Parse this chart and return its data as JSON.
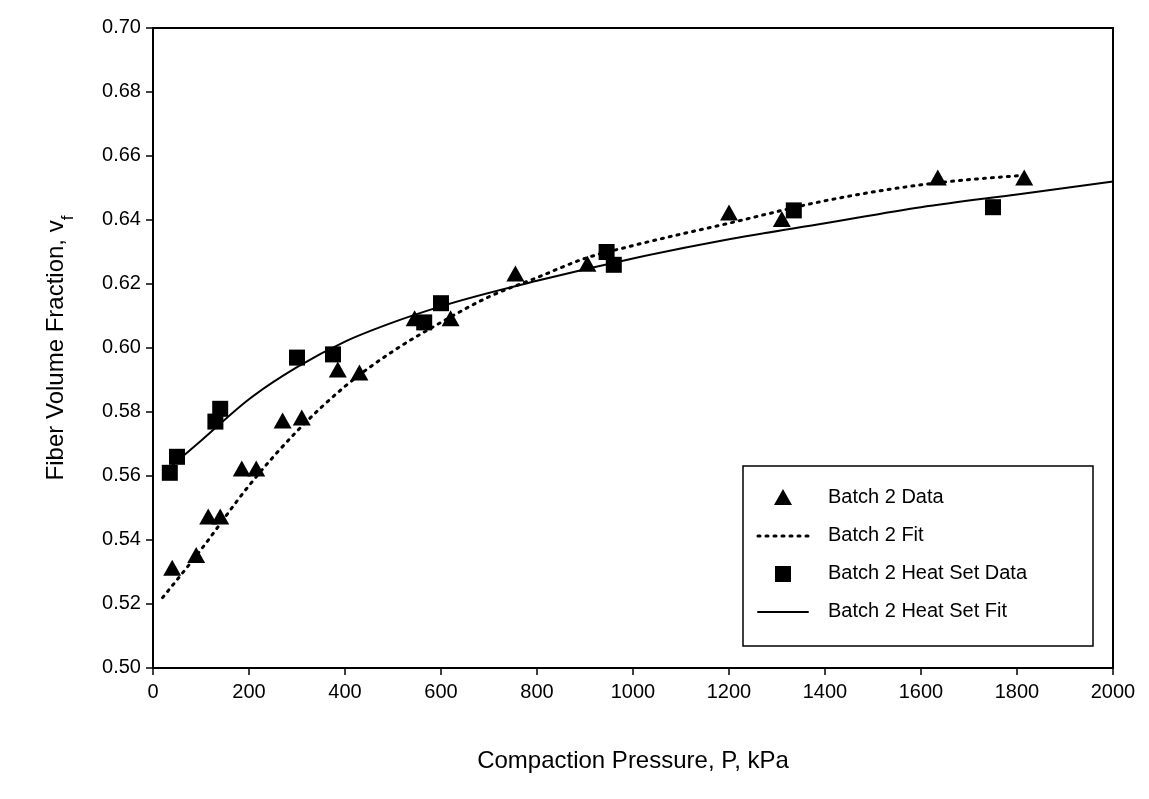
{
  "chart_data": {
    "type": "scatter",
    "xlabel": "Compaction Pressure, P, kPa",
    "ylabel": "Fiber Volume Fraction, v$_{f}$",
    "xlim": [
      0,
      2000
    ],
    "xticks": [
      0,
      200,
      400,
      600,
      800,
      1000,
      1200,
      1400,
      1600,
      1800,
      2000
    ],
    "ylim": [
      0.5,
      0.7
    ],
    "yticks": [
      {
        "value": 0.5,
        "label": "0.50"
      },
      {
        "value": 0.52,
        "label": "0.52"
      },
      {
        "value": 0.54,
        "label": "0.54"
      },
      {
        "value": 0.56,
        "label": "0.56"
      },
      {
        "value": 0.58,
        "label": "0.58"
      },
      {
        "value": 0.6,
        "label": "0.60"
      },
      {
        "value": 0.62,
        "label": "0.62"
      },
      {
        "value": 0.64,
        "label": "0.64"
      },
      {
        "value": 0.66,
        "label": "0.66"
      },
      {
        "value": 0.68,
        "label": "0.68"
      },
      {
        "value": 0.7,
        "label": "0.70"
      }
    ],
    "grid": false,
    "legend": "bottom right",
    "series": [
      {
        "name": "Batch 2 Data",
        "marker": "triangle",
        "color": "#000000",
        "x": [
          40,
          90,
          115,
          140,
          185,
          215,
          270,
          310,
          385,
          430,
          545,
          620,
          755,
          905,
          1200,
          1310,
          1635,
          1815
        ],
        "values": [
          0.531,
          0.535,
          0.547,
          0.547,
          0.562,
          0.562,
          0.577,
          0.578,
          0.593,
          0.592,
          0.609,
          0.609,
          0.623,
          0.626,
          0.642,
          0.64,
          0.653,
          0.653
        ]
      },
      {
        "name": "Batch 2 Fit",
        "type": "line",
        "line_style": "dotted",
        "color": "#000000",
        "x": [
          20,
          100,
          200,
          300,
          400,
          500,
          600,
          700,
          800,
          900,
          1000,
          1200,
          1400,
          1600,
          1820
        ],
        "values": [
          0.522,
          0.537,
          0.557,
          0.574,
          0.588,
          0.599,
          0.608,
          0.616,
          0.622,
          0.628,
          0.632,
          0.639,
          0.646,
          0.651,
          0.654
        ]
      },
      {
        "name": "Batch 2 Heat Set Data",
        "marker": "square",
        "color": "#000000",
        "x": [
          35,
          50,
          130,
          140,
          300,
          375,
          565,
          600,
          945,
          960,
          1335,
          1750
        ],
        "values": [
          0.561,
          0.566,
          0.577,
          0.581,
          0.597,
          0.598,
          0.608,
          0.614,
          0.63,
          0.626,
          0.643,
          0.644
        ]
      },
      {
        "name": "Batch 2 Heat Set Fit",
        "type": "line",
        "line_style": "solid",
        "color": "#000000",
        "x": [
          30,
          100,
          200,
          300,
          400,
          500,
          600,
          800,
          1000,
          1200,
          1400,
          1600,
          1800,
          2000
        ],
        "values": [
          0.562,
          0.571,
          0.584,
          0.594,
          0.602,
          0.608,
          0.613,
          0.621,
          0.628,
          0.634,
          0.639,
          0.644,
          0.648,
          0.652
        ]
      }
    ]
  }
}
